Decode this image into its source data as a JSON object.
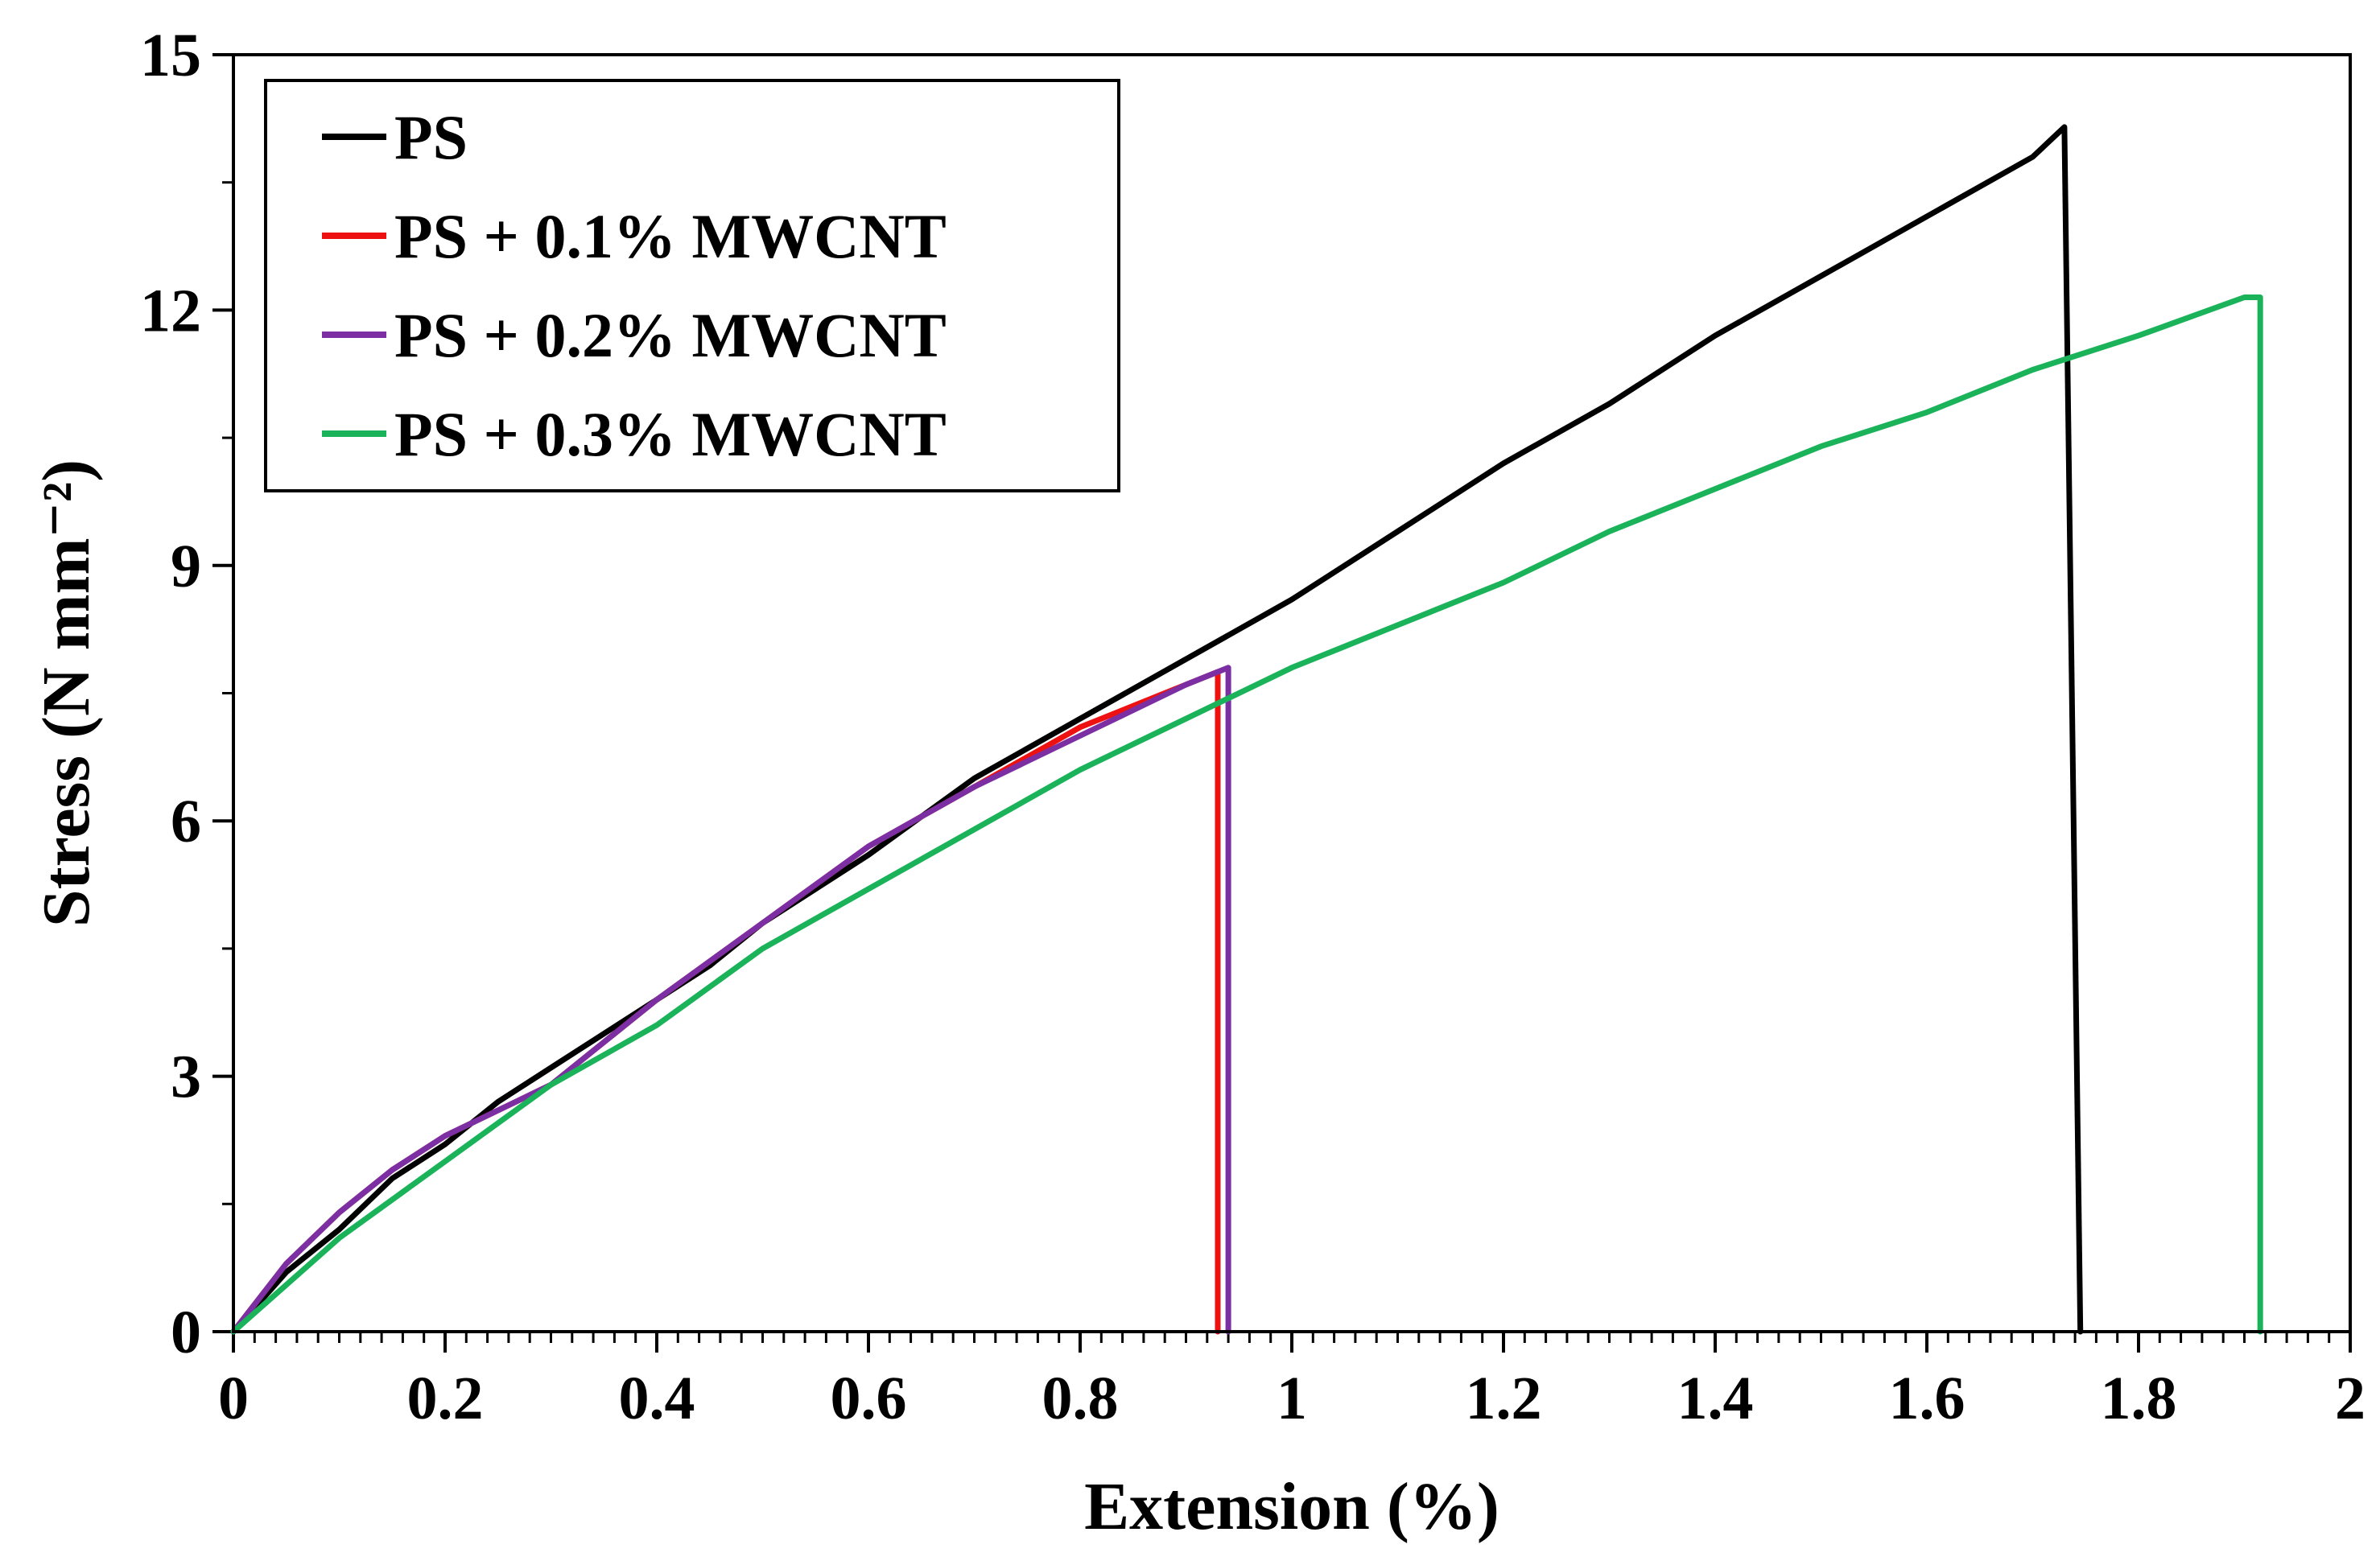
{
  "chart_data": {
    "type": "line",
    "title": "",
    "xlabel": "Extension (%)",
    "ylabel": "Stress (N mm⁻²)",
    "xlim": [
      0,
      2
    ],
    "ylim": [
      0,
      15
    ],
    "x_ticks": [
      "0",
      "0.2",
      "0.4",
      "0.6",
      "0.8",
      "1",
      "1.2",
      "1.4",
      "1.6",
      "1.8",
      "2"
    ],
    "y_ticks": [
      "0",
      "3",
      "6",
      "9",
      "12",
      "15"
    ],
    "x_minor_step": 0.02,
    "y_minor_step": 1.5,
    "grid": false,
    "legend_position": "top-left",
    "series": [
      {
        "name": "PS",
        "color": "#000000",
        "points": [
          [
            0,
            0
          ],
          [
            0.05,
            0.7
          ],
          [
            0.1,
            1.2
          ],
          [
            0.15,
            1.8
          ],
          [
            0.2,
            2.2
          ],
          [
            0.25,
            2.7
          ],
          [
            0.3,
            3.1
          ],
          [
            0.35,
            3.5
          ],
          [
            0.4,
            3.9
          ],
          [
            0.45,
            4.3
          ],
          [
            0.5,
            4.8
          ],
          [
            0.6,
            5.6
          ],
          [
            0.7,
            6.5
          ],
          [
            0.8,
            7.2
          ],
          [
            0.9,
            7.9
          ],
          [
            1.0,
            8.6
          ],
          [
            1.1,
            9.4
          ],
          [
            1.2,
            10.2
          ],
          [
            1.3,
            10.9
          ],
          [
            1.4,
            11.7
          ],
          [
            1.5,
            12.4
          ],
          [
            1.6,
            13.1
          ],
          [
            1.7,
            13.8
          ],
          [
            1.73,
            14.15
          ],
          [
            1.745,
            0
          ]
        ]
      },
      {
        "name": "PS + 0.1% MWCNT",
        "color": "#ee1111",
        "points": [
          [
            0,
            0
          ],
          [
            0.05,
            0.8
          ],
          [
            0.1,
            1.4
          ],
          [
            0.15,
            1.9
          ],
          [
            0.2,
            2.3
          ],
          [
            0.3,
            2.9
          ],
          [
            0.4,
            3.9
          ],
          [
            0.5,
            4.8
          ],
          [
            0.6,
            5.7
          ],
          [
            0.7,
            6.4
          ],
          [
            0.8,
            7.1
          ],
          [
            0.9,
            7.6
          ],
          [
            0.93,
            7.75
          ],
          [
            0.93,
            0
          ]
        ]
      },
      {
        "name": "PS + 0.2% MWCNT",
        "color": "#7b2fa3",
        "points": [
          [
            0,
            0
          ],
          [
            0.05,
            0.8
          ],
          [
            0.1,
            1.4
          ],
          [
            0.15,
            1.9
          ],
          [
            0.2,
            2.3
          ],
          [
            0.3,
            2.9
          ],
          [
            0.4,
            3.9
          ],
          [
            0.5,
            4.8
          ],
          [
            0.6,
            5.7
          ],
          [
            0.7,
            6.4
          ],
          [
            0.8,
            7.0
          ],
          [
            0.9,
            7.6
          ],
          [
            0.94,
            7.8
          ],
          [
            0.94,
            0
          ]
        ]
      },
      {
        "name": "PS + 0.3% MWCNT",
        "color": "#1ab35a",
        "points": [
          [
            0,
            0
          ],
          [
            0.1,
            1.1
          ],
          [
            0.2,
            2.0
          ],
          [
            0.3,
            2.9
          ],
          [
            0.4,
            3.6
          ],
          [
            0.5,
            4.5
          ],
          [
            0.6,
            5.2
          ],
          [
            0.7,
            5.9
          ],
          [
            0.8,
            6.6
          ],
          [
            0.9,
            7.2
          ],
          [
            1.0,
            7.8
          ],
          [
            1.1,
            8.3
          ],
          [
            1.2,
            8.8
          ],
          [
            1.3,
            9.4
          ],
          [
            1.4,
            9.9
          ],
          [
            1.5,
            10.4
          ],
          [
            1.6,
            10.8
          ],
          [
            1.7,
            11.3
          ],
          [
            1.8,
            11.7
          ],
          [
            1.9,
            12.15
          ],
          [
            1.915,
            12.15
          ],
          [
            1.915,
            0
          ]
        ]
      }
    ]
  }
}
